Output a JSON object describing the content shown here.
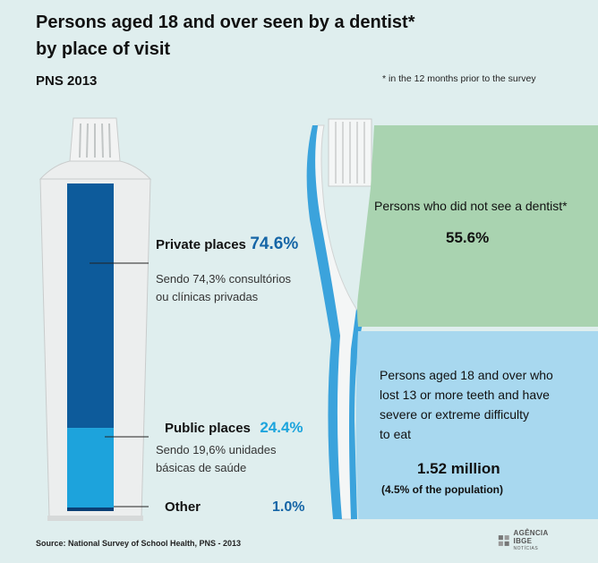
{
  "header": {
    "title_line1": "Persons aged 18 and over seen by a dentist*",
    "title_line2": "by place of visit",
    "subtitle": "PNS 2013",
    "footnote": "* in the 12 months prior to the survey"
  },
  "toothpaste": {
    "private": {
      "label": "Private places",
      "value": "74.6%",
      "share": 74.6,
      "desc_line1": "Sendo 74,3% consultórios",
      "desc_line2": "ou clínicas privadas"
    },
    "public": {
      "label": "Public places",
      "value": "24.4%",
      "share": 24.4,
      "desc_line1": "Sendo 19,6% unidades",
      "desc_line2": "básicas de saúde"
    },
    "other": {
      "label": "Other",
      "value": "1.0%",
      "share": 1.0
    },
    "colors": {
      "private": "#0d5b9b",
      "public": "#1da3dc",
      "other": "#0b3f75"
    }
  },
  "toothbrush": {
    "top_panel": {
      "label": "Persons who did not see a dentist*",
      "value": "55.6%",
      "color": "#a9d3b0"
    },
    "bottom_panel": {
      "line1": "Persons aged 18 and over who",
      "line2": "lost 13 or more teeth and have",
      "line3": "severe or extreme difficulty",
      "line4": "to eat",
      "value": "1.52 million",
      "subvalue": "(4.5% of the population)",
      "color": "#a8d8ef"
    }
  },
  "footer": {
    "source": "Source: National Survey of School Health, PNS - 2013",
    "logo_main": "AGÊNCIA IBGE",
    "logo_sub": "NOTÍCIAS",
    "logo_icon": "ibge-logo-icon"
  }
}
